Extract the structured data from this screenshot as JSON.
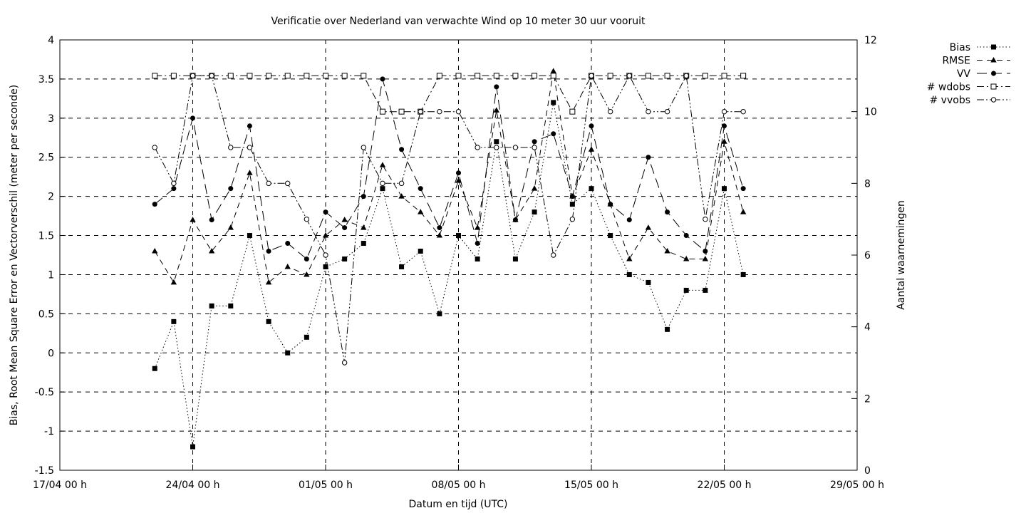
{
  "chart_data": {
    "type": "line",
    "title": "Verificatie over Nederland van verwachte Wind op 10 meter 30 uur vooruit",
    "xlabel": "Datum en tijd (UTC)",
    "ylabel": "Bias, Root Mean Square Error en Vectorverschil (meter per seconde)",
    "y2label": "Aantal waarnemingen",
    "xlim": [
      "2024-04-17",
      "2024-05-29"
    ],
    "xticks": [
      {
        "date": "2024-04-17",
        "label": "17/04 00 h"
      },
      {
        "date": "2024-04-24",
        "label": "24/04 00 h"
      },
      {
        "date": "2024-05-01",
        "label": "01/05 00 h"
      },
      {
        "date": "2024-05-08",
        "label": "08/05 00 h"
      },
      {
        "date": "2024-05-15",
        "label": "15/05 00 h"
      },
      {
        "date": "2024-05-22",
        "label": "22/05 00 h"
      },
      {
        "date": "2024-05-29",
        "label": "29/05 00 h"
      }
    ],
    "ylim": [
      -1.5,
      4
    ],
    "yticks": [
      "-1.5",
      "-1",
      "-0.5",
      "0",
      "0.5",
      "1",
      "1.5",
      "2",
      "2.5",
      "3",
      "3.5",
      "4"
    ],
    "y2lim": [
      0,
      12
    ],
    "y2ticks": [
      "0",
      "2",
      "4",
      "6",
      "8",
      "10",
      "12"
    ],
    "grid": true,
    "legend_position": "outside-top-right",
    "x": [
      "2024-04-22",
      "2024-04-23",
      "2024-04-24",
      "2024-04-25",
      "2024-04-26",
      "2024-04-27",
      "2024-04-28",
      "2024-04-29",
      "2024-04-30",
      "2024-05-01",
      "2024-05-02",
      "2024-05-03",
      "2024-05-04",
      "2024-05-05",
      "2024-05-06",
      "2024-05-07",
      "2024-05-08",
      "2024-05-09",
      "2024-05-10",
      "2024-05-11",
      "2024-05-12",
      "2024-05-13",
      "2024-05-14",
      "2024-05-15",
      "2024-05-16",
      "2024-05-17",
      "2024-05-18",
      "2024-05-19",
      "2024-05-20",
      "2024-05-21",
      "2024-05-22",
      "2024-05-23"
    ],
    "series": [
      {
        "name": "Bias",
        "axis": "left",
        "marker": "filled-square",
        "dash": "dotted",
        "values": [
          -0.2,
          0.4,
          -1.2,
          0.6,
          0.6,
          1.5,
          0.4,
          0.0,
          0.2,
          1.1,
          1.2,
          1.4,
          2.1,
          1.1,
          1.3,
          0.5,
          1.5,
          1.2,
          2.7,
          1.2,
          1.8,
          3.2,
          1.9,
          2.1,
          1.5,
          1.0,
          0.9,
          0.3,
          0.8,
          0.8,
          2.1,
          1.0
        ]
      },
      {
        "name": "RMSE",
        "axis": "left",
        "marker": "filled-triangle",
        "dash": "dashed",
        "values": [
          1.3,
          0.9,
          1.7,
          1.3,
          1.6,
          2.3,
          0.9,
          1.1,
          1.0,
          1.5,
          1.7,
          1.6,
          2.4,
          2.0,
          1.8,
          1.5,
          2.2,
          1.6,
          3.1,
          1.7,
          2.1,
          3.6,
          2.0,
          2.6,
          1.9,
          1.2,
          1.6,
          1.3,
          1.2,
          1.2,
          2.7,
          1.8
        ]
      },
      {
        "name": "VV",
        "axis": "left",
        "marker": "filled-circle",
        "dash": "long-dashed",
        "values": [
          1.9,
          2.1,
          3.0,
          1.7,
          2.1,
          2.9,
          1.3,
          1.4,
          1.2,
          1.8,
          1.6,
          2.0,
          3.5,
          2.6,
          2.1,
          1.6,
          2.3,
          1.4,
          3.4,
          1.7,
          2.7,
          2.8,
          2.0,
          2.9,
          1.9,
          1.7,
          2.5,
          1.8,
          1.5,
          1.3,
          2.9,
          2.1
        ]
      },
      {
        "name": "# wdobs",
        "axis": "right",
        "marker": "open-square",
        "dash": "dash-dot",
        "values": [
          11,
          11,
          11,
          11,
          11,
          11,
          11,
          11,
          11,
          11,
          11,
          11,
          10,
          10,
          10,
          11,
          11,
          11,
          11,
          11,
          11,
          11,
          10,
          11,
          11,
          11,
          11,
          11,
          11,
          11,
          11,
          11
        ]
      },
      {
        "name": "# vvobs",
        "axis": "right",
        "marker": "open-circle",
        "dash": "dash-dot-dot",
        "values": [
          9,
          8,
          11,
          11,
          9,
          9,
          8,
          8,
          7,
          6,
          3,
          9,
          8,
          8,
          10,
          10,
          10,
          9,
          9,
          9,
          9,
          6,
          7,
          11,
          10,
          11,
          10,
          10,
          11,
          7,
          10,
          10
        ]
      }
    ]
  }
}
